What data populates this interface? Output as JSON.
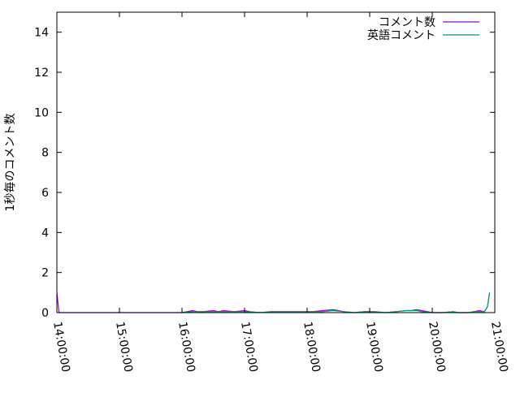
{
  "chart_data": {
    "type": "line",
    "title": "",
    "xlabel": "",
    "ylabel": "1秒毎のコメント数",
    "xlim": [
      "14:00:00",
      "21:00:00"
    ],
    "ylim": [
      0,
      15
    ],
    "x_ticks": [
      "14:00:00",
      "15:00:00",
      "16:00:00",
      "17:00:00",
      "18:00:00",
      "19:00:00",
      "20:00:00",
      "21:00:00"
    ],
    "y_ticks": [
      0,
      2,
      4,
      6,
      8,
      10,
      12,
      14
    ],
    "grid": false,
    "legend_position": "top-right",
    "series": [
      {
        "name": "コメント数",
        "color": "#9400d3",
        "points": [
          [
            "14:00",
            1
          ],
          [
            "14:02",
            0
          ],
          [
            "16:00",
            0
          ],
          [
            "16:05",
            0.05
          ],
          [
            "16:10",
            0.1
          ],
          [
            "16:15",
            0.05
          ],
          [
            "16:20",
            0.05
          ],
          [
            "16:30",
            0.1
          ],
          [
            "16:35",
            0.05
          ],
          [
            "16:40",
            0.1
          ],
          [
            "16:50",
            0.05
          ],
          [
            "17:00",
            0.1
          ],
          [
            "17:05",
            0.05
          ],
          [
            "17:15",
            0
          ],
          [
            "17:25",
            0.05
          ],
          [
            "17:35",
            0.05
          ],
          [
            "17:45",
            0.05
          ],
          [
            "17:55",
            0.05
          ],
          [
            "18:05",
            0.05
          ],
          [
            "18:15",
            0.1
          ],
          [
            "18:25",
            0.15
          ],
          [
            "18:30",
            0.1
          ],
          [
            "18:35",
            0.05
          ],
          [
            "18:45",
            0
          ],
          [
            "18:55",
            0.05
          ],
          [
            "19:05",
            0.05
          ],
          [
            "19:15",
            0
          ],
          [
            "19:25",
            0.05
          ],
          [
            "19:35",
            0.1
          ],
          [
            "19:40",
            0.1
          ],
          [
            "19:45",
            0.15
          ],
          [
            "19:50",
            0.1
          ],
          [
            "20:00",
            0
          ],
          [
            "20:10",
            0
          ],
          [
            "20:20",
            0.05
          ],
          [
            "20:25",
            0
          ],
          [
            "20:35",
            0
          ],
          [
            "20:40",
            0.05
          ],
          [
            "20:45",
            0.1
          ],
          [
            "20:50",
            0.05
          ],
          [
            "20:53",
            0.3
          ],
          [
            "20:55",
            1
          ]
        ]
      },
      {
        "name": "英語コメント",
        "color": "#009e73",
        "points": [
          [
            "16:00",
            0
          ],
          [
            "16:10",
            0.05
          ],
          [
            "16:20",
            0.05
          ],
          [
            "16:30",
            0.05
          ],
          [
            "16:40",
            0.05
          ],
          [
            "16:50",
            0.05
          ],
          [
            "17:00",
            0.05
          ],
          [
            "17:15",
            0
          ],
          [
            "17:25",
            0.05
          ],
          [
            "17:35",
            0.05
          ],
          [
            "17:45",
            0.05
          ],
          [
            "17:55",
            0.05
          ],
          [
            "18:05",
            0.05
          ],
          [
            "18:15",
            0.05
          ],
          [
            "18:25",
            0.1
          ],
          [
            "18:35",
            0.05
          ],
          [
            "18:45",
            0
          ],
          [
            "18:55",
            0.05
          ],
          [
            "19:05",
            0.05
          ],
          [
            "19:15",
            0
          ],
          [
            "19:25",
            0.05
          ],
          [
            "19:35",
            0.1
          ],
          [
            "19:45",
            0.1
          ],
          [
            "19:50",
            0.05
          ],
          [
            "20:00",
            0
          ],
          [
            "20:10",
            0
          ],
          [
            "20:20",
            0.05
          ],
          [
            "20:25",
            0
          ],
          [
            "20:35",
            0
          ],
          [
            "20:40",
            0.05
          ],
          [
            "20:45",
            0.05
          ],
          [
            "20:50",
            0.05
          ],
          [
            "20:53",
            0.3
          ],
          [
            "20:55",
            1
          ]
        ]
      }
    ]
  }
}
